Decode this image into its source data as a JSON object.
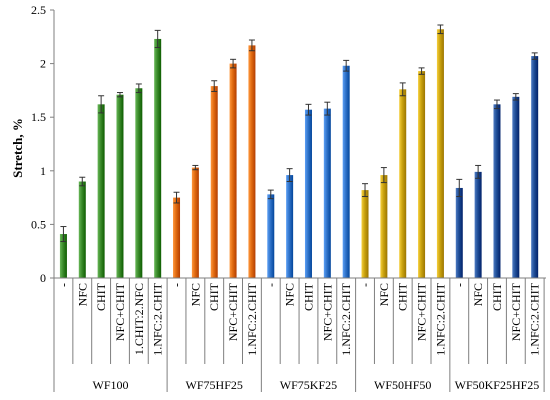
{
  "chart_data": {
    "type": "bar",
    "ylabel": "Stretch, %",
    "xlabel": "",
    "ylim": [
      0,
      2.5
    ],
    "yticks": [
      "0",
      "0.5",
      "1",
      "1.5",
      "2",
      "2.5"
    ],
    "grid": false,
    "groups": [
      {
        "name": "WF100",
        "color": "#3a8a2a",
        "categories": [
          "-",
          "NFC",
          "CHIT",
          "NFC+CHIT",
          "1.CHIT:2.NFC",
          "1.NFC:2.CHIT"
        ],
        "values": [
          0.41,
          0.9,
          1.62,
          1.71,
          1.77,
          2.23
        ],
        "errors": [
          0.07,
          0.04,
          0.08,
          0.02,
          0.04,
          0.08
        ]
      },
      {
        "name": "WF75HF25",
        "color": "#e06a10",
        "categories": [
          "-",
          "NFC",
          "CHIT",
          "NFC+CHIT",
          "1.NFC:2.CHIT"
        ],
        "values": [
          0.75,
          1.03,
          1.79,
          2.0,
          2.17
        ],
        "errors": [
          0.05,
          0.02,
          0.05,
          0.04,
          0.05
        ]
      },
      {
        "name": "WF75KF25",
        "color": "#2f72c8",
        "categories": [
          "-",
          "NFC",
          "CHIT",
          "NFC+CHIT",
          "1.NFC:2.CHIT"
        ],
        "values": [
          0.78,
          0.96,
          1.57,
          1.58,
          1.98
        ],
        "errors": [
          0.04,
          0.06,
          0.05,
          0.06,
          0.05
        ]
      },
      {
        "name": "WF50HF50",
        "color": "#c9a20e",
        "categories": [
          "-",
          "NFC",
          "CHIT",
          "NFC+CHIT",
          "1.NFC:2.CHIT"
        ],
        "values": [
          0.82,
          0.96,
          1.76,
          1.93,
          2.32
        ],
        "errors": [
          0.06,
          0.07,
          0.06,
          0.03,
          0.04
        ]
      },
      {
        "name": "WF50KF25HF25",
        "color": "#1f4d96",
        "categories": [
          "-",
          "NFC",
          "CHIT",
          "NFC+CHIT",
          "1.NFC:2.CHIT"
        ],
        "values": [
          0.84,
          0.99,
          1.62,
          1.69,
          2.07
        ],
        "errors": [
          0.08,
          0.06,
          0.04,
          0.03,
          0.03
        ]
      }
    ]
  }
}
